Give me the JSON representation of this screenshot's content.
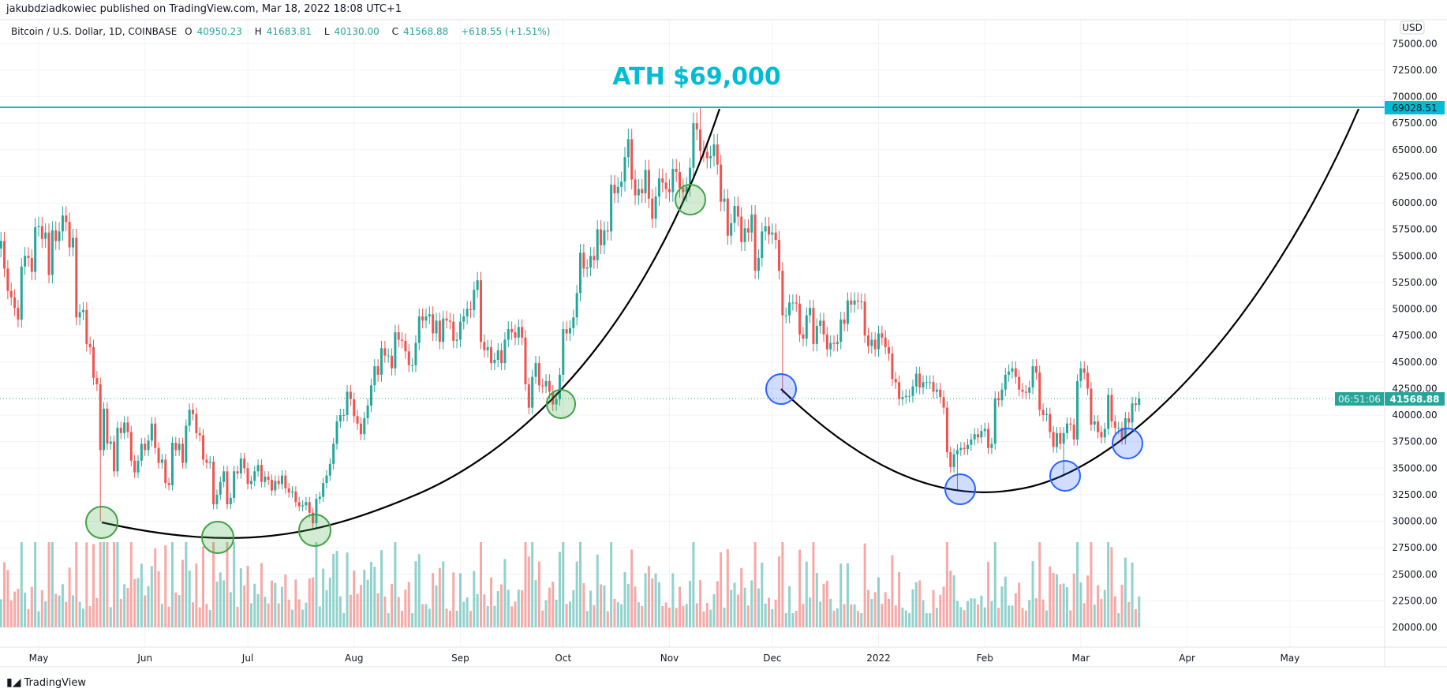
{
  "header": {
    "publisher_line": "jakubdziadkowiec published on TradingView.com, Mar 18, 2022 18:08 UTC+1"
  },
  "legend": {
    "symbol": "Bitcoin / U.S. Dollar, 1D, COINBASE",
    "open_label": "O",
    "open": "40950.23",
    "high_label": "H",
    "high": "41683.81",
    "low_label": "L",
    "low": "40130.00",
    "close_label": "C",
    "close": "41568.88",
    "change": "+618.55 (+1.51%)"
  },
  "price_axis": {
    "currency": "USD",
    "ath_label": "69028.51",
    "last_price": "41568.88",
    "countdown": "06:51:06"
  },
  "annotation": {
    "ath_text": "ATH $69,000"
  },
  "footer": {
    "brand": "TradingView"
  },
  "colors": {
    "up": "#26a69a",
    "down": "#ef5350",
    "ath_line": "#00bcd4",
    "green_circle": "#4caf50",
    "blue_circle": "#2962ff",
    "curve": "#000000"
  },
  "chart_data": {
    "type": "candlestick",
    "ylim": [
      18000,
      76500
    ],
    "y_ticks": [
      "75000.00",
      "72500.00",
      "70000.00",
      "67500.00",
      "65000.00",
      "62500.00",
      "60000.00",
      "57500.00",
      "55000.00",
      "52500.00",
      "50000.00",
      "47500.00",
      "45000.00",
      "42500.00",
      "40000.00",
      "37500.00",
      "35000.00",
      "32500.00",
      "30000.00",
      "27500.00",
      "25000.00",
      "22500.00",
      "20000.00"
    ],
    "x_ticks": [
      {
        "label": "May",
        "date": "2021-05-01"
      },
      {
        "label": "Jun",
        "date": "2021-06-01"
      },
      {
        "label": "Jul",
        "date": "2021-07-01"
      },
      {
        "label": "Aug",
        "date": "2021-08-01"
      },
      {
        "label": "Sep",
        "date": "2021-09-01"
      },
      {
        "label": "Oct",
        "date": "2021-10-01"
      },
      {
        "label": "Nov",
        "date": "2021-11-01"
      },
      {
        "label": "Dec",
        "date": "2021-12-01"
      },
      {
        "label": "2022",
        "date": "2022-01-01"
      },
      {
        "label": "Feb",
        "date": "2022-02-01"
      },
      {
        "label": "Mar",
        "date": "2022-03-01"
      },
      {
        "label": "Apr",
        "date": "2022-04-01"
      },
      {
        "label": "May",
        "date": "2022-05-01"
      }
    ],
    "start_date": "2021-04-20",
    "first_open": 55700,
    "closes": [
      56400,
      53800,
      51700,
      51100,
      50100,
      49000,
      54000,
      55000,
      54800,
      53500,
      57700,
      57800,
      56600,
      57200,
      53200,
      57400,
      56400,
      57300,
      58800,
      58200,
      55800,
      56700,
      49200,
      49700,
      49900,
      46700,
      46400,
      43500,
      42900,
      36700,
      40600,
      37300,
      37500,
      34700,
      38800,
      38300,
      39300,
      38400,
      35700,
      34600,
      35700,
      37300,
      36700,
      37600,
      39200,
      36900,
      35500,
      35800,
      33600,
      33400,
      37400,
      36700,
      37300,
      35500,
      39000,
      40500,
      40100,
      38300,
      38100,
      35800,
      35500,
      35600,
      31600,
      32500,
      33700,
      34700,
      31600,
      32200,
      34700,
      34500,
      35900,
      35000,
      33500,
      33800,
      34700,
      35300,
      33700,
      34200,
      33900,
      32900,
      33800,
      33500,
      34300,
      33100,
      32700,
      32800,
      31800,
      31400,
      31500,
      31800,
      30800,
      29800,
      32100,
      32300,
      33600,
      34300,
      35400,
      37300,
      39400,
      40000,
      40000,
      42200,
      41500,
      39900,
      39200,
      38200,
      39700,
      40900,
      42800,
      44600,
      43800,
      46300,
      45600,
      45600,
      44400,
      47800,
      47100,
      47000,
      46000,
      44700,
      44700,
      46800,
      49300,
      48900,
      49300,
      49500,
      47700,
      48900,
      46900,
      49100,
      48900,
      48800,
      47000,
      47100,
      48800,
      49300,
      50000,
      49900,
      51800,
      52700,
      46900,
      46100,
      46400,
      44900,
      45200,
      46100,
      44900,
      47100,
      48100,
      47800,
      47300,
      48300,
      47300,
      42900,
      40700,
      43600,
      44900,
      42800,
      42700,
      43200,
      42200,
      41000,
      41500,
      43800,
      48100,
      47700,
      48200,
      49200,
      51500,
      55300,
      53800,
      53900,
      55000,
      54600,
      57500,
      56000,
      57400,
      57300,
      61700,
      60900,
      61500,
      62000,
      64300,
      66000,
      62200,
      60700,
      61300,
      60900,
      63100,
      60400,
      58500,
      60600,
      62300,
      61900,
      61300,
      61000,
      63200,
      62900,
      61400,
      61000,
      61500,
      63300,
      67500,
      66900,
      64900,
      64800,
      64200,
      64400,
      65500,
      63600,
      60100,
      60400,
      56900,
      58100,
      59700,
      58700,
      56300,
      57600,
      57200,
      58900,
      53600,
      54800,
      57300,
      57800,
      57000,
      57200,
      56500,
      53600,
      49400,
      49400,
      50600,
      50600,
      50500,
      47600,
      47200,
      49400,
      50100,
      46700,
      48400,
      48900,
      47600,
      46200,
      46800,
      46700,
      46900,
      49000,
      48600,
      50800,
      50400,
      50800,
      50700,
      50700,
      47500,
      46500,
      47100,
      46200,
      47700,
      47300,
      46400,
      45800,
      43400,
      43100,
      41500,
      41700,
      41800,
      41800,
      42700,
      43900,
      42600,
      43100,
      43100,
      43100,
      42200,
      42400,
      41700,
      40700,
      36500,
      35100,
      36300,
      36700,
      36900,
      36800,
      37200,
      37700,
      38200,
      37900,
      38500,
      38700,
      36900,
      37300,
      41600,
      41400,
      42400,
      43800,
      44100,
      44400,
      43600,
      42400,
      42200,
      42100,
      42600,
      44600,
      44000,
      40500,
      40000,
      40100,
      38400,
      37000,
      38300,
      37300,
      38300,
      39200,
      39100,
      37700,
      43200,
      44400,
      44000,
      42500,
      39100,
      39400,
      38400,
      37900,
      38700,
      41900,
      39400,
      38800,
      38800,
      37800,
      39700,
      39300,
      41100,
      40950,
      41568.88
    ],
    "wick_extremes": [
      {
        "date": "2021-05-19",
        "low": 30000
      },
      {
        "date": "2021-11-10",
        "high": 69000
      },
      {
        "date": "2021-12-04",
        "low": 42000
      },
      {
        "date": "2022-01-24",
        "low": 32900
      },
      {
        "date": "2022-02-24",
        "low": 34300
      }
    ],
    "horizontal_lines": [
      {
        "price": 69028.51,
        "label": "ATH $69,000"
      }
    ],
    "current_price_line": 41568.88
  }
}
